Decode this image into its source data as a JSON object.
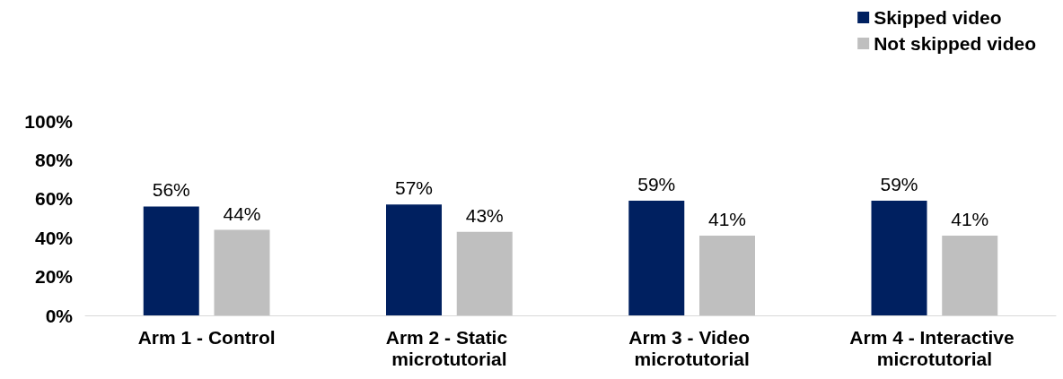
{
  "chart_data": {
    "type": "bar",
    "categories": [
      "Arm 1 - Control",
      "Arm 2 - Static microtutorial",
      "Arm 3 - Video microtutorial",
      "Arm 4 - Interactive microtutorial"
    ],
    "series": [
      {
        "name": "Skipped video",
        "color": "#002060",
        "values": [
          56,
          57,
          59,
          59
        ],
        "value_labels": [
          "56%",
          "57%",
          "59%",
          "59%"
        ]
      },
      {
        "name": "Not skipped video",
        "color": "#bfbfbf",
        "values": [
          44,
          43,
          41,
          41
        ],
        "value_labels": [
          "44%",
          "43%",
          "41%",
          "41%"
        ]
      }
    ],
    "ylim": [
      0,
      100
    ],
    "yticks": [
      {
        "value": 0,
        "label": "0%"
      },
      {
        "value": 20,
        "label": "20%"
      },
      {
        "value": 40,
        "label": "40%"
      },
      {
        "value": 60,
        "label": "60%"
      },
      {
        "value": 80,
        "label": "80%"
      },
      {
        "value": 100,
        "label": "100%"
      }
    ],
    "grid": false,
    "legend": "top right"
  }
}
